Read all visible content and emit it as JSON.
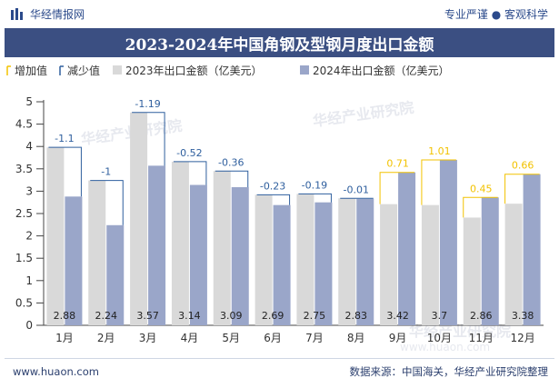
{
  "header": {
    "brand_name": "华经情报网",
    "slogan": "专业严谨 ● 客观科学"
  },
  "footer": {
    "url": "www.huaon.com",
    "source": "数据来源：中国海关，华经产业研究院整理"
  },
  "watermarks": [
    "华经产业研究院",
    "www.huaon.com"
  ],
  "colors": {
    "title_band": "#3b4f82",
    "bar_2023": "#d9d9d9",
    "bar_2024": "#9aa6c9",
    "increase": "#f2c200",
    "decrease": "#2f5f9e"
  },
  "chart_data": {
    "type": "bar",
    "title": "2023-2024年中国角钢及型钢月度出口金额",
    "categories": [
      "1月",
      "2月",
      "3月",
      "4月",
      "5月",
      "6月",
      "7月",
      "8月",
      "9月",
      "10月",
      "11月",
      "12月"
    ],
    "series": [
      {
        "name": "2023年出口金额（亿美元）",
        "values": [
          3.98,
          3.24,
          4.76,
          3.66,
          3.45,
          2.92,
          2.94,
          2.84,
          2.71,
          2.69,
          2.41,
          2.72
        ]
      },
      {
        "name": "2024年出口金额（亿美元）",
        "values": [
          2.88,
          2.24,
          3.57,
          3.14,
          3.09,
          2.69,
          2.75,
          2.83,
          3.42,
          3.7,
          2.86,
          3.38
        ]
      }
    ],
    "changes": [
      "-1.1",
      "-1",
      "-1.19",
      "-0.52",
      "-0.36",
      "-0.23",
      "-0.19",
      "-0.01",
      "0.71",
      "1.01",
      "0.45",
      "0.66"
    ],
    "change_legend": {
      "increase": "增加值",
      "decrease": "减少值"
    },
    "yticks": [
      "0",
      "0.5",
      "1",
      "1.5",
      "2",
      "2.5",
      "3",
      "3.5",
      "4",
      "4.5",
      "5"
    ],
    "ylim": [
      0,
      5
    ],
    "legend_position": "top-left",
    "grid": false
  }
}
